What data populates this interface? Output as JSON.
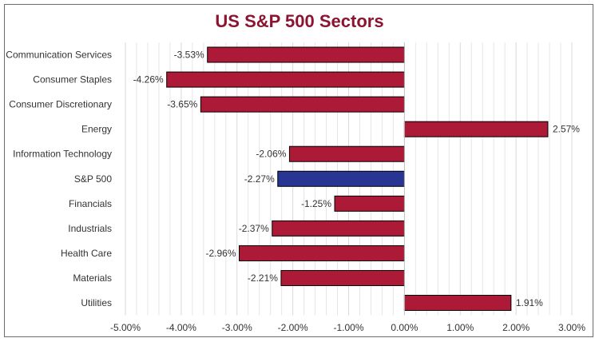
{
  "chart_data": {
    "type": "bar",
    "orientation": "horizontal",
    "title": "US S&P 500 Sectors",
    "xlabel": "",
    "ylabel": "",
    "xlim": [
      -5,
      3
    ],
    "x_ticks": [
      -5,
      -4,
      -3,
      -2,
      -1,
      0,
      1,
      2,
      3
    ],
    "x_tick_labels": [
      "-5.00%",
      "-4.00%",
      "-3.00%",
      "-2.00%",
      "-1.00%",
      "0.00%",
      "1.00%",
      "2.00%",
      "3.00%"
    ],
    "grid": "vertical",
    "legend": "none",
    "categories": [
      "Communication Services",
      "Consumer Staples",
      "Consumer Discretionary",
      "Energy",
      "Information Technology",
      "S&P 500",
      "Financials",
      "Industrials",
      "Health Care",
      "Materials",
      "Utilities"
    ],
    "values": [
      -3.53,
      -4.26,
      -3.65,
      2.57,
      -2.06,
      -2.27,
      -1.25,
      -2.37,
      -2.96,
      -2.21,
      1.91
    ],
    "data_labels": [
      "-3.53%",
      "-4.26%",
      "-3.65%",
      "2.57%",
      "-2.06%",
      "-2.27%",
      "-1.25%",
      "-2.37%",
      "-2.96%",
      "-2.21%",
      "1.91%"
    ],
    "highlight_category": "S&P 500",
    "colors": {
      "bar": "#ad1a37",
      "highlight": "#283593",
      "title": "#8b1530",
      "bar_border": "#000000",
      "grid": "#e6e6e6",
      "text": "#333333"
    }
  }
}
